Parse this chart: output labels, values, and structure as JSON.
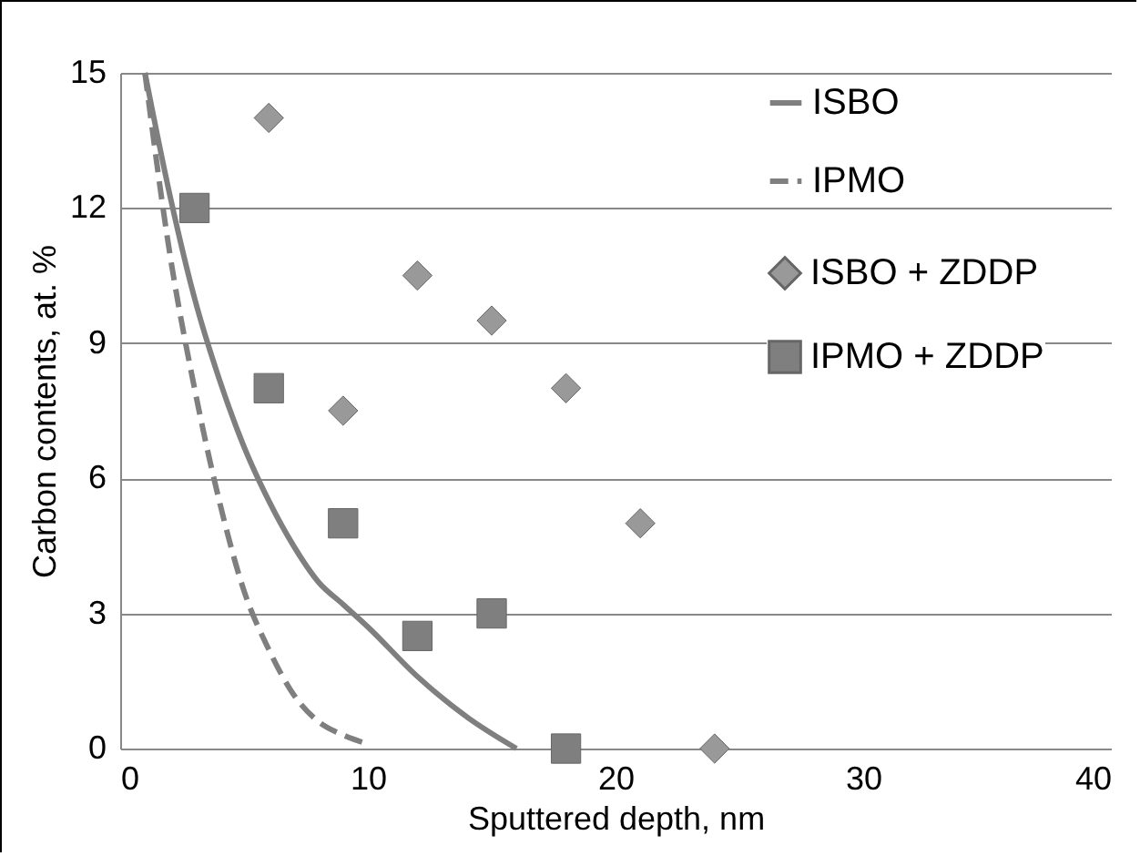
{
  "chart_data": {
    "type": "line",
    "xlabel": "Sputtered depth, nm",
    "ylabel": "Carbon contents, at. %",
    "xlim": [
      0,
      40
    ],
    "xticks": [
      0,
      10,
      20,
      30,
      40
    ],
    "ylim": [
      0,
      15
    ],
    "yticks": [
      0,
      3,
      6,
      9,
      12,
      15
    ],
    "grid": "y",
    "legend": "top right",
    "series": [
      {
        "name": "ISBO",
        "line_style": "solid",
        "color": "#7f7f7f",
        "x": [
          1,
          2,
          3,
          4,
          5,
          6,
          7,
          8,
          9,
          10,
          12,
          14,
          16
        ],
        "values": [
          15,
          12.3,
          10,
          8.2,
          6.7,
          5.5,
          4.5,
          3.7,
          3.2,
          2.7,
          1.6,
          0.7,
          0
        ]
      },
      {
        "name": "IPMO",
        "line_style": "dashed",
        "color": "#7f7f7f",
        "x": [
          1,
          2,
          3,
          4,
          5,
          6,
          7,
          8,
          9,
          10
        ],
        "values": [
          15,
          11,
          8,
          5.5,
          3.5,
          2.2,
          1.2,
          0.6,
          0.3,
          0.1
        ]
      },
      {
        "name": "ISBO + ZDDP",
        "type": "scatter",
        "marker": "diamond",
        "color": "#999999",
        "x": [
          6,
          9,
          12,
          15,
          18,
          21,
          24
        ],
        "values": [
          14,
          7.5,
          10.5,
          9.5,
          8,
          5,
          0
        ]
      },
      {
        "name": "IPMO + ZDDP",
        "type": "scatter",
        "marker": "square",
        "color": "#7f7f7f",
        "x": [
          3,
          6,
          9,
          12,
          15,
          18
        ],
        "values": [
          12,
          8,
          5,
          2.5,
          3,
          0
        ]
      }
    ]
  }
}
